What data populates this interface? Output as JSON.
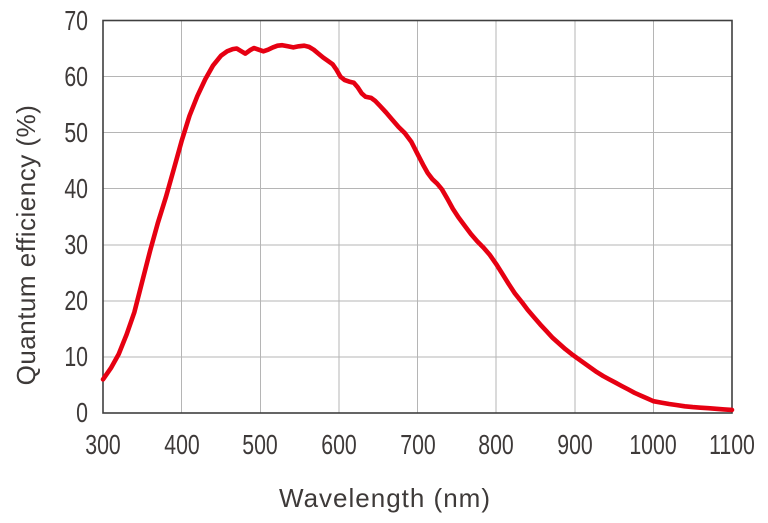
{
  "page": {
    "background": "#ffffff"
  },
  "chart_data": {
    "type": "line",
    "title": "",
    "xlabel": "Wavelength (nm)",
    "ylabel": "Quantum efficiency (%)",
    "xlim": [
      300,
      1100
    ],
    "ylim": [
      0,
      70
    ],
    "xticks": [
      300,
      400,
      500,
      600,
      700,
      800,
      900,
      1000,
      1100
    ],
    "yticks": [
      0,
      10,
      20,
      30,
      40,
      50,
      60,
      70
    ],
    "grid": true,
    "legend": "none",
    "colors": {
      "line": "#e60012",
      "grid": "#b5b5b5",
      "axis_frame": "#3f3f3f",
      "text": "#3e3a39",
      "background": "#ffffff"
    },
    "series": [
      {
        "name": "quantum-efficiency",
        "points": [
          [
            300,
            6.0
          ],
          [
            310,
            8.0
          ],
          [
            320,
            10.5
          ],
          [
            330,
            14.0
          ],
          [
            340,
            18.0
          ],
          [
            350,
            23.5
          ],
          [
            360,
            29.0
          ],
          [
            370,
            34.0
          ],
          [
            380,
            38.5
          ],
          [
            390,
            43.5
          ],
          [
            400,
            48.5
          ],
          [
            410,
            53.0
          ],
          [
            420,
            56.5
          ],
          [
            430,
            59.5
          ],
          [
            440,
            62.0
          ],
          [
            450,
            63.7
          ],
          [
            458,
            64.5
          ],
          [
            465,
            64.9
          ],
          [
            470,
            65.0
          ],
          [
            476,
            64.5
          ],
          [
            481,
            64.1
          ],
          [
            487,
            64.7
          ],
          [
            492,
            65.1
          ],
          [
            498,
            64.8
          ],
          [
            504,
            64.5
          ],
          [
            510,
            64.8
          ],
          [
            516,
            65.2
          ],
          [
            522,
            65.5
          ],
          [
            528,
            65.6
          ],
          [
            535,
            65.4
          ],
          [
            542,
            65.2
          ],
          [
            549,
            65.4
          ],
          [
            556,
            65.5
          ],
          [
            562,
            65.3
          ],
          [
            568,
            64.8
          ],
          [
            574,
            64.1
          ],
          [
            580,
            63.4
          ],
          [
            586,
            62.8
          ],
          [
            592,
            62.2
          ],
          [
            597,
            61.2
          ],
          [
            602,
            60.0
          ],
          [
            607,
            59.4
          ],
          [
            613,
            59.1
          ],
          [
            619,
            58.9
          ],
          [
            624,
            58.1
          ],
          [
            629,
            57.0
          ],
          [
            634,
            56.4
          ],
          [
            641,
            56.2
          ],
          [
            646,
            55.7
          ],
          [
            652,
            54.8
          ],
          [
            660,
            53.6
          ],
          [
            668,
            52.3
          ],
          [
            676,
            51.0
          ],
          [
            684,
            49.9
          ],
          [
            692,
            48.4
          ],
          [
            700,
            46.2
          ],
          [
            707,
            44.3
          ],
          [
            713,
            42.8
          ],
          [
            719,
            41.7
          ],
          [
            725,
            40.9
          ],
          [
            731,
            39.9
          ],
          [
            738,
            38.2
          ],
          [
            745,
            36.4
          ],
          [
            752,
            34.9
          ],
          [
            760,
            33.4
          ],
          [
            768,
            31.9
          ],
          [
            776,
            30.6
          ],
          [
            784,
            29.5
          ],
          [
            792,
            28.2
          ],
          [
            800,
            26.6
          ],
          [
            808,
            24.8
          ],
          [
            816,
            23.0
          ],
          [
            824,
            21.3
          ],
          [
            832,
            19.9
          ],
          [
            840,
            18.4
          ],
          [
            848,
            17.1
          ],
          [
            856,
            15.8
          ],
          [
            864,
            14.6
          ],
          [
            872,
            13.4
          ],
          [
            880,
            12.4
          ],
          [
            888,
            11.4
          ],
          [
            896,
            10.5
          ],
          [
            904,
            9.7
          ],
          [
            912,
            8.9
          ],
          [
            920,
            8.1
          ],
          [
            928,
            7.3
          ],
          [
            936,
            6.6
          ],
          [
            944,
            6.0
          ],
          [
            952,
            5.4
          ],
          [
            960,
            4.8
          ],
          [
            968,
            4.2
          ],
          [
            976,
            3.6
          ],
          [
            984,
            3.1
          ],
          [
            992,
            2.6
          ],
          [
            1000,
            2.1
          ],
          [
            1010,
            1.85
          ],
          [
            1020,
            1.6
          ],
          [
            1030,
            1.4
          ],
          [
            1040,
            1.2
          ],
          [
            1050,
            1.05
          ],
          [
            1060,
            0.95
          ],
          [
            1070,
            0.85
          ],
          [
            1080,
            0.75
          ],
          [
            1090,
            0.65
          ],
          [
            1100,
            0.55
          ]
        ]
      }
    ]
  }
}
